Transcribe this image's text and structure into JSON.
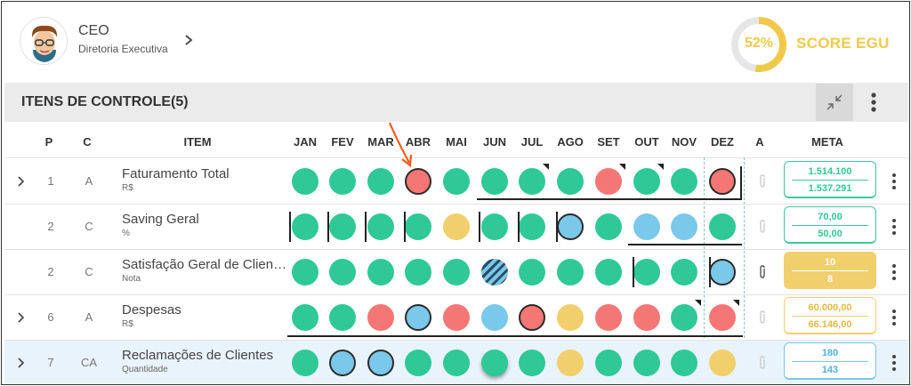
{
  "header": {
    "title": "CEO",
    "subtitle": "Diretoria Executiva"
  },
  "score": {
    "percent": "52%",
    "label": "SCORE EGU",
    "value": 0.52,
    "color": "#f1c94a"
  },
  "toolbar": {
    "title": "ITENS DE CONTROLE(5)"
  },
  "columns": {
    "p": "P",
    "c": "C",
    "item": "ITEM",
    "a": "A",
    "meta": "META",
    "months": [
      "JAN",
      "FEV",
      "MAR",
      "ABR",
      "MAI",
      "JUN",
      "JUL",
      "AGO",
      "SET",
      "OUT",
      "NOV",
      "DEZ"
    ]
  },
  "colors": {
    "green": "#2ec996",
    "red": "#f47675",
    "yellow": "#f1cf6c",
    "blue": "#7ac8ea",
    "teal_border": "#3cc9a0",
    "yellow_border": "#f1cf6c",
    "blue_border": "#7ac8ea"
  },
  "rows": [
    {
      "p": "1",
      "c": "A",
      "name": "Faturamento Total",
      "unit": "R$",
      "expandable": true,
      "clip": false,
      "meta1": "1.514.100",
      "meta2": "1.537.291",
      "meta_style": "green",
      "months": [
        "green",
        "green",
        "green",
        "red-b",
        "green",
        "green",
        "green-f",
        "green",
        "red-f",
        "green-f",
        "green",
        "red-b"
      ]
    },
    {
      "p": "2",
      "c": "C",
      "name": "Saving Geral",
      "unit": "%",
      "expandable": false,
      "clip": false,
      "meta1": "70,00",
      "meta2": "50,00",
      "meta_style": "green",
      "months": [
        "green",
        "green",
        "green",
        "green",
        "yellow",
        "green",
        "green",
        "blue-b",
        "green",
        "blue",
        "blue",
        "green"
      ]
    },
    {
      "p": "2",
      "c": "C",
      "name": "Satisfação Geral de Clientes",
      "unit": "Nota",
      "expandable": false,
      "clip": true,
      "meta1": "10",
      "meta2": "8",
      "meta_style": "filled",
      "months": [
        "green",
        "green",
        "green",
        "green",
        "green",
        "hatch",
        "green",
        "green",
        "green",
        "green",
        "green",
        "blue-b"
      ]
    },
    {
      "p": "6",
      "c": "A",
      "name": "Despesas",
      "unit": "R$",
      "expandable": true,
      "clip": false,
      "meta1": "60.000,00",
      "meta2": "66.146,00",
      "meta_style": "yellow",
      "months": [
        "green",
        "green",
        "red",
        "blue-b",
        "red",
        "blue",
        "red-b",
        "yellow",
        "red",
        "red",
        "green-f",
        "red-f"
      ]
    },
    {
      "p": "7",
      "c": "CA",
      "name": "Reclamações de Clientes",
      "unit": "Quantidade",
      "expandable": true,
      "clip": false,
      "meta1": "180",
      "meta2": "143",
      "meta_style": "blue",
      "months": [
        "green",
        "blue-b",
        "blue-b",
        "green",
        "green",
        "green-s",
        "green",
        "yellow",
        "green",
        "green",
        "green",
        "yellow"
      ]
    }
  ]
}
